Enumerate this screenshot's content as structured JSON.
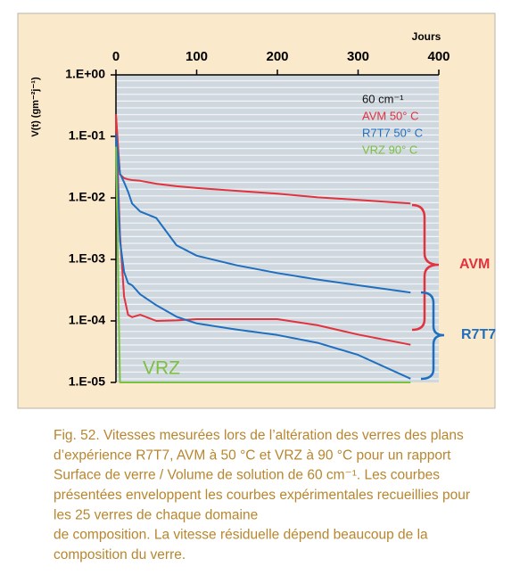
{
  "chart_data": {
    "type": "line",
    "x_label": "Jours",
    "y_label": "V(t) (gm⁻²j⁻¹)",
    "x": [
      0,
      5,
      10,
      15,
      20,
      30,
      50,
      75,
      100,
      150,
      200,
      250,
      300,
      365
    ],
    "xlim": [
      0,
      400
    ],
    "xticks": [
      0,
      100,
      200,
      300,
      400
    ],
    "log_y": true,
    "ylim": [
      1e-05,
      1
    ],
    "yticks": [
      {
        "value": 1,
        "label": "1.E+00"
      },
      {
        "value": 0.1,
        "label": "1.E-01"
      },
      {
        "value": 0.01,
        "label": "1.E-02"
      },
      {
        "value": 0.001,
        "label": "1.E-03"
      },
      {
        "value": 0.0001,
        "label": "1.E-04"
      },
      {
        "value": 1e-05,
        "label": "1.E-05"
      }
    ],
    "legend_title": "60 cm⁻¹",
    "legend": "upper right",
    "series": [
      {
        "name": "AVM 50° C",
        "color": "#e2323e",
        "upper": [
          0.23,
          0.024,
          0.021,
          0.02,
          0.0195,
          0.019,
          0.017,
          0.0155,
          0.0145,
          0.013,
          0.0117,
          0.0102,
          0.0093,
          0.0081
        ],
        "lower": [
          0.21,
          0.0026,
          0.00025,
          0.000126,
          0.000115,
          0.000126,
          0.0001,
          0.000102,
          0.000107,
          0.000107,
          0.000107,
          8.5e-05,
          6e-05,
          4.1e-05
        ]
      },
      {
        "name": "R7T7 50° C",
        "color": "#1f6fbf",
        "upper": [
          0.11,
          0.025,
          0.018,
          0.0126,
          0.0081,
          0.006,
          0.0047,
          0.0017,
          0.00115,
          0.0008,
          0.0006,
          0.00047,
          0.00038,
          0.00029
        ],
        "lower": [
          0.093,
          0.002,
          0.00063,
          0.00041,
          0.00038,
          0.00027,
          0.00018,
          0.000117,
          9.1e-05,
          7.2e-05,
          5.9e-05,
          4.4e-05,
          2.8e-05,
          1.15e-05
        ]
      },
      {
        "name": "VRZ 90° C",
        "color": "#7cc040",
        "values": [
          0.068,
          1e-05,
          1e-05,
          1e-05,
          1e-05,
          1e-05,
          1e-05,
          1e-05,
          1e-05,
          1e-05,
          1e-05,
          1e-05,
          1e-05,
          1e-05
        ]
      }
    ],
    "annotations": [
      {
        "text": "VRZ",
        "color": "#7cc040"
      },
      {
        "text": "AVM",
        "color": "#e2323e"
      },
      {
        "text": "R7T7",
        "color": "#1f6fbf"
      }
    ]
  },
  "caption": [
    "Fig. 52. Vitesses mesurées lors de l’altération des verres des plans",
    "d’expérience R7T7, AVM à 50 °C et VRZ à 90 °C pour un rapport",
    "Surface de verre / Volume de solution de 60 cm⁻¹. Les courbes",
    "présentées enveloppent les courbes expérimentales recueillies pour",
    "les 25 verres de chaque domaine",
    "de composition. La vitesse résiduelle dépend beaucoup  de la",
    "composition du verre."
  ]
}
